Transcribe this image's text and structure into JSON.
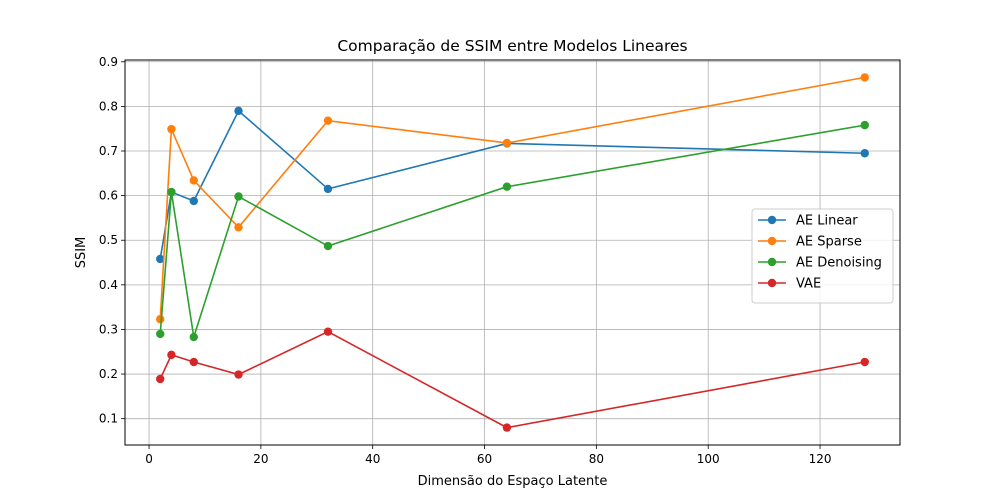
{
  "chart_data": {
    "type": "line",
    "title": "Comparação de SSIM entre Modelos Lineares",
    "xlabel": "Dimensão do Espaço Latente",
    "ylabel": "SSIM",
    "xlim": [
      -4.3,
      134.3
    ],
    "ylim": [
      0.041,
      0.904
    ],
    "xticks": [
      0,
      20,
      40,
      60,
      80,
      100,
      120
    ],
    "yticks": [
      0.1,
      0.2,
      0.3,
      0.4,
      0.5,
      0.6,
      0.7,
      0.8,
      0.9
    ],
    "xtick_labels": [
      "0",
      "20",
      "40",
      "60",
      "80",
      "100",
      "120"
    ],
    "ytick_labels": [
      "0.1",
      "0.2",
      "0.3",
      "0.4",
      "0.5",
      "0.6",
      "0.7",
      "0.8",
      "0.9"
    ],
    "grid": true,
    "legend_position": "center-right",
    "x": [
      2,
      4,
      8,
      16,
      32,
      64,
      128
    ],
    "series": [
      {
        "name": "AE Linear",
        "color": "#1f77b4",
        "values": [
          0.458,
          0.608,
          0.588,
          0.79,
          0.615,
          0.717,
          0.695
        ]
      },
      {
        "name": "AE Sparse",
        "color": "#ff7f0e",
        "values": [
          0.323,
          0.749,
          0.634,
          0.529,
          0.768,
          0.718,
          0.865
        ]
      },
      {
        "name": "AE Denoising",
        "color": "#2ca02c",
        "values": [
          0.29,
          0.608,
          0.283,
          0.598,
          0.487,
          0.62,
          0.758
        ]
      },
      {
        "name": "VAE",
        "color": "#d62728",
        "values": [
          0.189,
          0.243,
          0.227,
          0.199,
          0.295,
          0.08,
          0.227
        ]
      }
    ]
  }
}
